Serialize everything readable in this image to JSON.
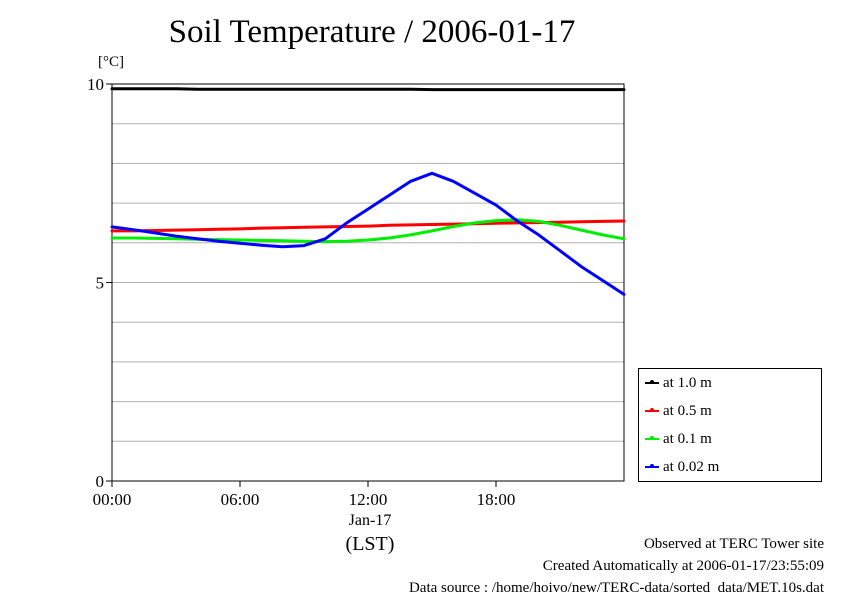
{
  "title": "Soil Temperature / 2006-01-17",
  "y_unit": "[°C]",
  "x_date_label": "Jan-17",
  "x_unit_label": "(LST)",
  "footer": {
    "observed": "Observed at TERC Tower site",
    "created": "Created Automatically at 2006-01-17/23:55:09",
    "source": "Data source : /home/hoivo/new/TERC-data/sorted  data/MET.10s.dat"
  },
  "chart_data": {
    "type": "line",
    "title": "Soil Temperature / 2006-01-17",
    "xlabel": "(LST)",
    "ylabel": "[°C]",
    "x_ticks": [
      "00:00",
      "06:00",
      "12:00",
      "18:00"
    ],
    "y_ticks": [
      "0",
      "5",
      "10"
    ],
    "xlim": [
      0,
      24
    ],
    "ylim": [
      0,
      10
    ],
    "grid": true,
    "legend_position": "right-bottom-outside",
    "x": [
      0,
      1,
      2,
      3,
      4,
      5,
      6,
      7,
      8,
      9,
      10,
      11,
      12,
      13,
      14,
      15,
      16,
      17,
      18,
      19,
      20,
      21,
      22,
      23,
      24
    ],
    "series": [
      {
        "name": "at 1.0 m",
        "color": "#000000",
        "values": [
          9.88,
          9.88,
          9.88,
          9.88,
          9.87,
          9.87,
          9.87,
          9.87,
          9.87,
          9.87,
          9.87,
          9.87,
          9.87,
          9.87,
          9.87,
          9.86,
          9.86,
          9.86,
          9.86,
          9.86,
          9.86,
          9.86,
          9.86,
          9.86,
          9.86
        ]
      },
      {
        "name": "at 0.5 m",
        "color": "#ff0000",
        "values": [
          6.3,
          6.3,
          6.31,
          6.32,
          6.33,
          6.34,
          6.35,
          6.37,
          6.38,
          6.39,
          6.4,
          6.41,
          6.42,
          6.44,
          6.45,
          6.46,
          6.47,
          6.48,
          6.49,
          6.5,
          6.51,
          6.52,
          6.53,
          6.54,
          6.55
        ]
      },
      {
        "name": "at 0.1 m",
        "color": "#00ee00",
        "values": [
          6.12,
          6.12,
          6.11,
          6.1,
          6.09,
          6.08,
          6.07,
          6.06,
          6.05,
          6.04,
          6.03,
          6.04,
          6.07,
          6.12,
          6.2,
          6.3,
          6.41,
          6.5,
          6.56,
          6.58,
          6.54,
          6.44,
          6.32,
          6.2,
          6.1
        ]
      },
      {
        "name": "at 0.02 m",
        "color": "#0000ff",
        "values": [
          6.4,
          6.33,
          6.25,
          6.17,
          6.1,
          6.04,
          5.99,
          5.94,
          5.9,
          5.93,
          6.1,
          6.5,
          6.85,
          7.2,
          7.55,
          7.75,
          7.55,
          7.25,
          6.95,
          6.55,
          6.2,
          5.8,
          5.4,
          5.05,
          4.7
        ]
      }
    ]
  }
}
